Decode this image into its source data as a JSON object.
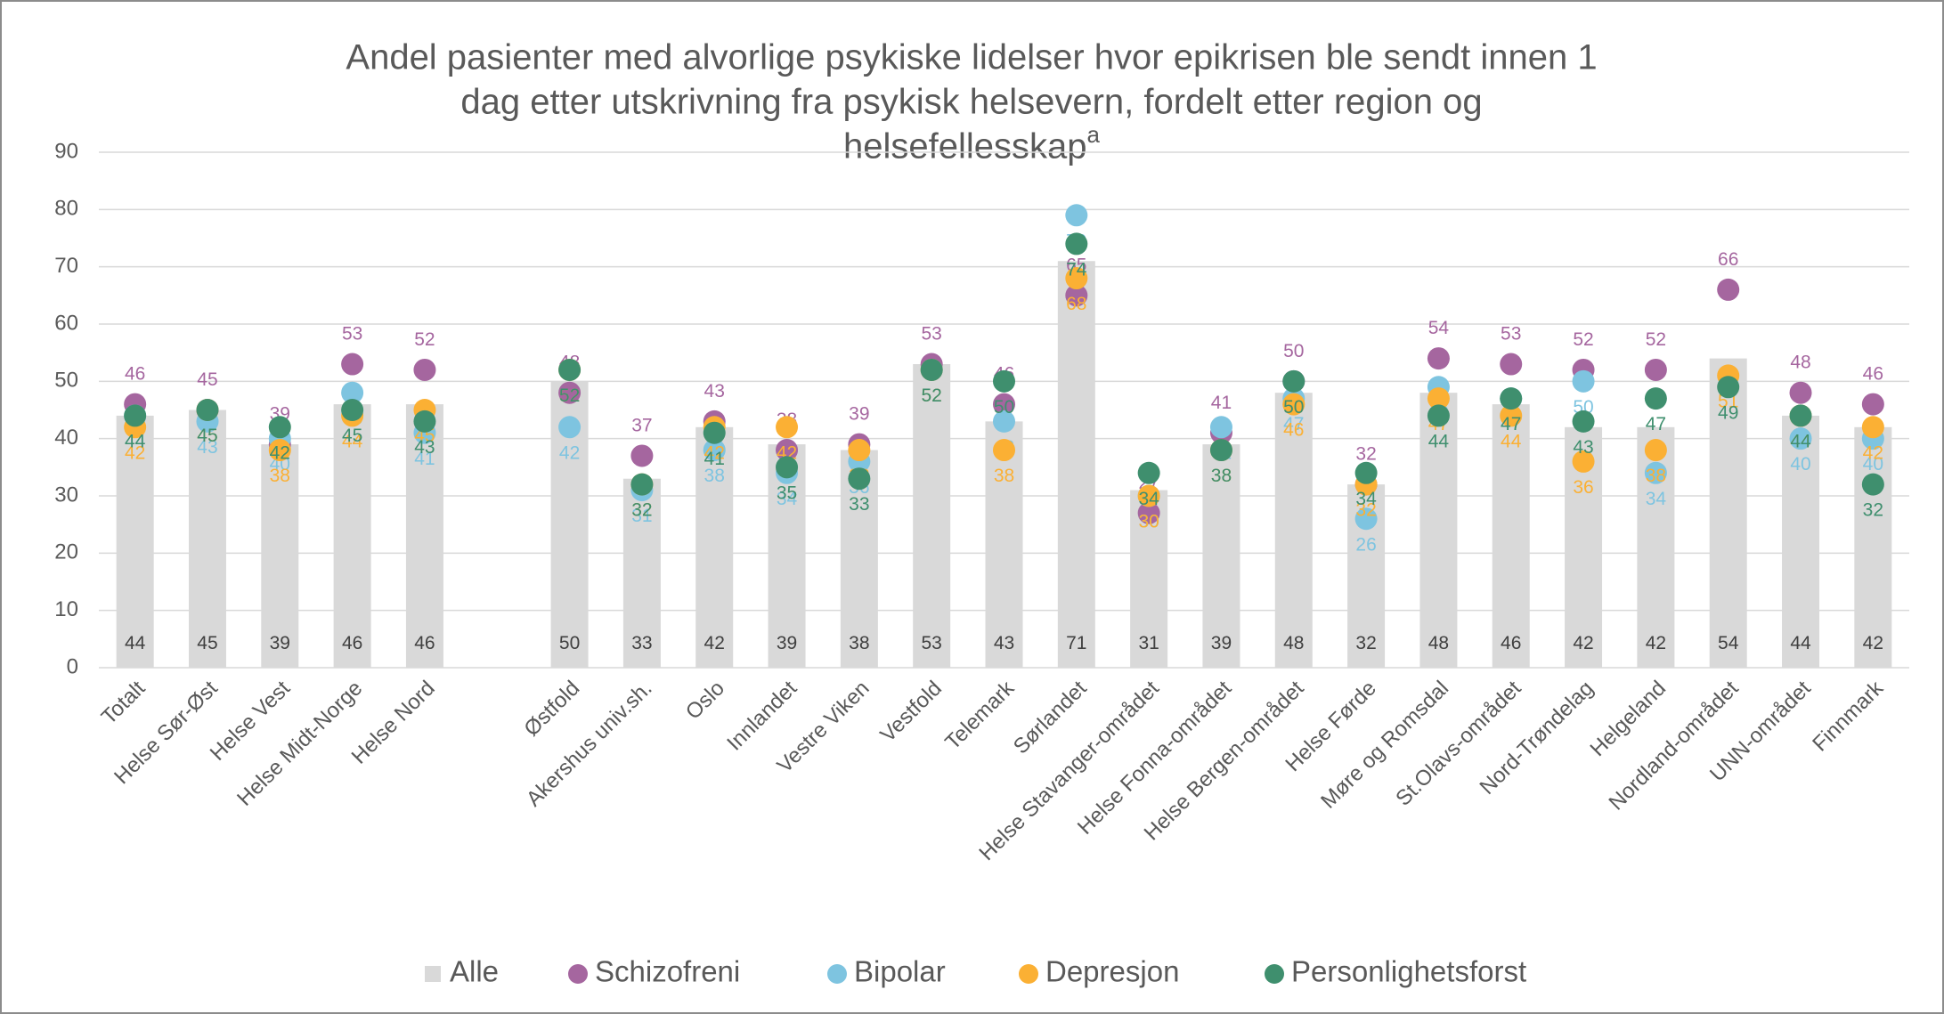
{
  "chart_data": {
    "type": "bar_dot",
    "title": [
      "Andel pasienter med alvorlige psykiske lidelser hvor epikrisen ble sendt innen 1",
      "dag etter utskrivning fra psykisk helsevern, fordelt etter region og",
      "helsefellesskap"
    ],
    "title_superscript": "a",
    "categories": [
      "Totalt",
      "Helse Sør-Øst",
      "Helse Vest",
      "Helse Midt-Norge",
      "Helse Nord",
      null,
      "Østfold",
      "Akershus univ.sh.",
      "Oslo",
      "Innlandet",
      "Vestre Viken",
      "Vestfold",
      "Telemark",
      "Sørlandet",
      "Helse Stavanger-området",
      "Helse Fonna-området",
      "Helse Bergen-området",
      "Helse Førde",
      "Møre og Romsdal",
      "St.Olavs-området",
      "Nord-Trøndelag",
      "Helgeland",
      "Nordland-området",
      "UNN-området",
      "Finnmark"
    ],
    "series": [
      {
        "name": "Alle",
        "color": "#d9d9d9",
        "kind": "bar",
        "values": [
          44,
          45,
          39,
          46,
          46,
          null,
          50,
          33,
          42,
          39,
          38,
          53,
          43,
          71,
          31,
          39,
          48,
          32,
          48,
          46,
          42,
          42,
          54,
          44,
          42
        ]
      },
      {
        "name": "Schizofreni",
        "color": "#a5669f",
        "kind": "dot",
        "values": [
          46,
          45,
          39,
          53,
          52,
          null,
          48,
          37,
          43,
          38,
          39,
          53,
          46,
          65,
          27,
          41,
          50,
          32,
          54,
          53,
          52,
          52,
          66,
          48,
          46
        ]
      },
      {
        "name": "Bipolar",
        "color": "#7ec4e0",
        "kind": "dot",
        "values": [
          44,
          43,
          40,
          48,
          41,
          null,
          42,
          31,
          38,
          34,
          36,
          52,
          43,
          79,
          30,
          42,
          47,
          26,
          49,
          47,
          50,
          34,
          null,
          40,
          40
        ]
      },
      {
        "name": "Depresjon",
        "color": "#fbb034",
        "kind": "dot",
        "values": [
          42,
          45,
          38,
          44,
          45,
          null,
          52,
          32,
          42,
          42,
          38,
          52,
          38,
          68,
          30,
          38,
          46,
          32,
          47,
          44,
          36,
          38,
          51,
          44,
          42
        ]
      },
      {
        "name": "Personlighetsforst",
        "color": "#3f8f6e",
        "kind": "dot",
        "values": [
          44,
          45,
          42,
          45,
          43,
          null,
          52,
          32,
          41,
          35,
          33,
          52,
          50,
          74,
          34,
          38,
          50,
          34,
          44,
          47,
          43,
          47,
          49,
          44,
          32
        ]
      }
    ],
    "ylim": [
      0,
      90
    ],
    "yticks": [
      0,
      10,
      20,
      30,
      40,
      50,
      60,
      70,
      80,
      90
    ],
    "grid": true,
    "legend": "bottom"
  }
}
